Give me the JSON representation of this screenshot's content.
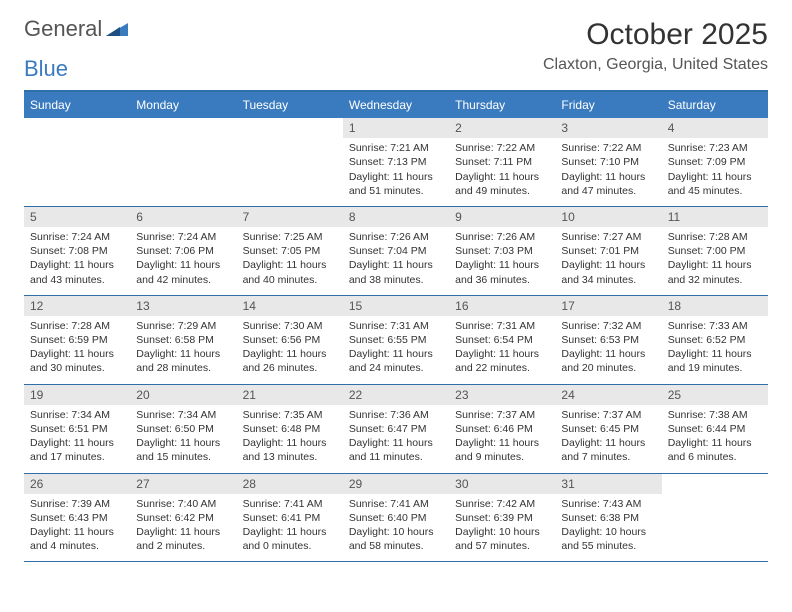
{
  "logo": {
    "text_a": "General",
    "text_b": "Blue"
  },
  "title": "October 2025",
  "location": "Claxton, Georgia, United States",
  "colors": {
    "header_bg": "#3a7bbf",
    "border": "#2f6fa9",
    "daynum_bg": "#e8e8e8",
    "text": "#333333",
    "location_text": "#555555"
  },
  "weekdays": [
    "Sunday",
    "Monday",
    "Tuesday",
    "Wednesday",
    "Thursday",
    "Friday",
    "Saturday"
  ],
  "weeks": [
    [
      {
        "n": "",
        "sr": "",
        "ss": "",
        "dl": ""
      },
      {
        "n": "",
        "sr": "",
        "ss": "",
        "dl": ""
      },
      {
        "n": "",
        "sr": "",
        "ss": "",
        "dl": ""
      },
      {
        "n": "1",
        "sr": "Sunrise: 7:21 AM",
        "ss": "Sunset: 7:13 PM",
        "dl": "Daylight: 11 hours and 51 minutes."
      },
      {
        "n": "2",
        "sr": "Sunrise: 7:22 AM",
        "ss": "Sunset: 7:11 PM",
        "dl": "Daylight: 11 hours and 49 minutes."
      },
      {
        "n": "3",
        "sr": "Sunrise: 7:22 AM",
        "ss": "Sunset: 7:10 PM",
        "dl": "Daylight: 11 hours and 47 minutes."
      },
      {
        "n": "4",
        "sr": "Sunrise: 7:23 AM",
        "ss": "Sunset: 7:09 PM",
        "dl": "Daylight: 11 hours and 45 minutes."
      }
    ],
    [
      {
        "n": "5",
        "sr": "Sunrise: 7:24 AM",
        "ss": "Sunset: 7:08 PM",
        "dl": "Daylight: 11 hours and 43 minutes."
      },
      {
        "n": "6",
        "sr": "Sunrise: 7:24 AM",
        "ss": "Sunset: 7:06 PM",
        "dl": "Daylight: 11 hours and 42 minutes."
      },
      {
        "n": "7",
        "sr": "Sunrise: 7:25 AM",
        "ss": "Sunset: 7:05 PM",
        "dl": "Daylight: 11 hours and 40 minutes."
      },
      {
        "n": "8",
        "sr": "Sunrise: 7:26 AM",
        "ss": "Sunset: 7:04 PM",
        "dl": "Daylight: 11 hours and 38 minutes."
      },
      {
        "n": "9",
        "sr": "Sunrise: 7:26 AM",
        "ss": "Sunset: 7:03 PM",
        "dl": "Daylight: 11 hours and 36 minutes."
      },
      {
        "n": "10",
        "sr": "Sunrise: 7:27 AM",
        "ss": "Sunset: 7:01 PM",
        "dl": "Daylight: 11 hours and 34 minutes."
      },
      {
        "n": "11",
        "sr": "Sunrise: 7:28 AM",
        "ss": "Sunset: 7:00 PM",
        "dl": "Daylight: 11 hours and 32 minutes."
      }
    ],
    [
      {
        "n": "12",
        "sr": "Sunrise: 7:28 AM",
        "ss": "Sunset: 6:59 PM",
        "dl": "Daylight: 11 hours and 30 minutes."
      },
      {
        "n": "13",
        "sr": "Sunrise: 7:29 AM",
        "ss": "Sunset: 6:58 PM",
        "dl": "Daylight: 11 hours and 28 minutes."
      },
      {
        "n": "14",
        "sr": "Sunrise: 7:30 AM",
        "ss": "Sunset: 6:56 PM",
        "dl": "Daylight: 11 hours and 26 minutes."
      },
      {
        "n": "15",
        "sr": "Sunrise: 7:31 AM",
        "ss": "Sunset: 6:55 PM",
        "dl": "Daylight: 11 hours and 24 minutes."
      },
      {
        "n": "16",
        "sr": "Sunrise: 7:31 AM",
        "ss": "Sunset: 6:54 PM",
        "dl": "Daylight: 11 hours and 22 minutes."
      },
      {
        "n": "17",
        "sr": "Sunrise: 7:32 AM",
        "ss": "Sunset: 6:53 PM",
        "dl": "Daylight: 11 hours and 20 minutes."
      },
      {
        "n": "18",
        "sr": "Sunrise: 7:33 AM",
        "ss": "Sunset: 6:52 PM",
        "dl": "Daylight: 11 hours and 19 minutes."
      }
    ],
    [
      {
        "n": "19",
        "sr": "Sunrise: 7:34 AM",
        "ss": "Sunset: 6:51 PM",
        "dl": "Daylight: 11 hours and 17 minutes."
      },
      {
        "n": "20",
        "sr": "Sunrise: 7:34 AM",
        "ss": "Sunset: 6:50 PM",
        "dl": "Daylight: 11 hours and 15 minutes."
      },
      {
        "n": "21",
        "sr": "Sunrise: 7:35 AM",
        "ss": "Sunset: 6:48 PM",
        "dl": "Daylight: 11 hours and 13 minutes."
      },
      {
        "n": "22",
        "sr": "Sunrise: 7:36 AM",
        "ss": "Sunset: 6:47 PM",
        "dl": "Daylight: 11 hours and 11 minutes."
      },
      {
        "n": "23",
        "sr": "Sunrise: 7:37 AM",
        "ss": "Sunset: 6:46 PM",
        "dl": "Daylight: 11 hours and 9 minutes."
      },
      {
        "n": "24",
        "sr": "Sunrise: 7:37 AM",
        "ss": "Sunset: 6:45 PM",
        "dl": "Daylight: 11 hours and 7 minutes."
      },
      {
        "n": "25",
        "sr": "Sunrise: 7:38 AM",
        "ss": "Sunset: 6:44 PM",
        "dl": "Daylight: 11 hours and 6 minutes."
      }
    ],
    [
      {
        "n": "26",
        "sr": "Sunrise: 7:39 AM",
        "ss": "Sunset: 6:43 PM",
        "dl": "Daylight: 11 hours and 4 minutes."
      },
      {
        "n": "27",
        "sr": "Sunrise: 7:40 AM",
        "ss": "Sunset: 6:42 PM",
        "dl": "Daylight: 11 hours and 2 minutes."
      },
      {
        "n": "28",
        "sr": "Sunrise: 7:41 AM",
        "ss": "Sunset: 6:41 PM",
        "dl": "Daylight: 11 hours and 0 minutes."
      },
      {
        "n": "29",
        "sr": "Sunrise: 7:41 AM",
        "ss": "Sunset: 6:40 PM",
        "dl": "Daylight: 10 hours and 58 minutes."
      },
      {
        "n": "30",
        "sr": "Sunrise: 7:42 AM",
        "ss": "Sunset: 6:39 PM",
        "dl": "Daylight: 10 hours and 57 minutes."
      },
      {
        "n": "31",
        "sr": "Sunrise: 7:43 AM",
        "ss": "Sunset: 6:38 PM",
        "dl": "Daylight: 10 hours and 55 minutes."
      },
      {
        "n": "",
        "sr": "",
        "ss": "",
        "dl": ""
      }
    ]
  ]
}
